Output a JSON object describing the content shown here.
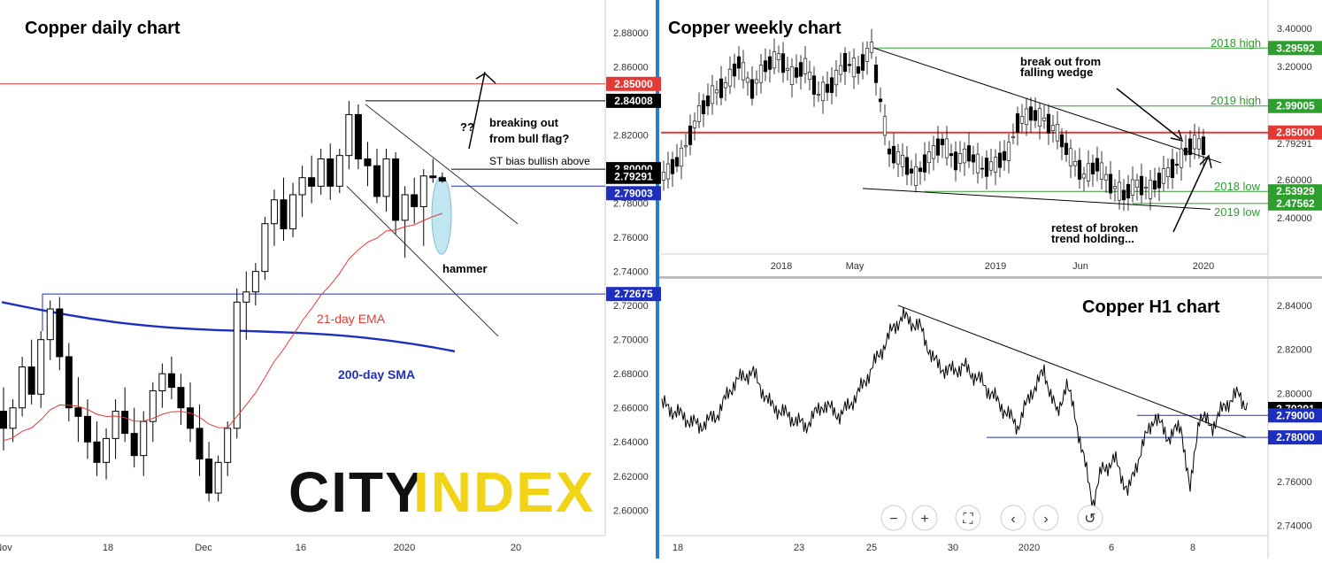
{
  "chart_data": [
    {
      "type": "candlestick",
      "title": "Copper daily chart",
      "y_ticks": [
        "2.88000",
        "2.86000",
        "2.84000",
        "2.82000",
        "2.80000",
        "2.78000",
        "2.76000",
        "2.74000",
        "2.72000",
        "2.70000",
        "2.68000",
        "2.66000",
        "2.64000",
        "2.62000",
        "2.60000"
      ],
      "x_ticks": [
        "Nov",
        "18",
        "Dec",
        "16",
        "2020",
        "20"
      ],
      "price_tags": [
        {
          "label": "2.85000",
          "value": 2.85,
          "color": "#e53935"
        },
        {
          "label": "2.84008",
          "value": 2.84008,
          "color": "#000000"
        },
        {
          "label": "2.80000",
          "value": 2.8,
          "color": "#000000"
        },
        {
          "label": "2.79291",
          "value": 2.79291,
          "color": "#000000"
        },
        {
          "label": "2.79003",
          "value": 2.79003,
          "color": "#1e2fbf"
        },
        {
          "label": "2.72675",
          "value": 2.72675,
          "color": "#1e2fbf"
        }
      ],
      "annotations": {
        "question": "??",
        "bull_flag_1": "breaking out",
        "bull_flag_2": "from bull flag?",
        "st_bias": "ST bias bullish above",
        "hammer": "hammer",
        "ema": "21-day EMA",
        "sma": "200-day SMA"
      },
      "candles": [
        [
          2.658,
          2.672,
          2.635,
          2.648
        ],
        [
          2.648,
          2.665,
          2.64,
          2.66
        ],
        [
          2.66,
          2.69,
          2.655,
          2.684
        ],
        [
          2.684,
          2.7,
          2.662,
          2.668
        ],
        [
          2.668,
          2.705,
          2.66,
          2.7
        ],
        [
          2.7,
          2.723,
          2.688,
          2.718
        ],
        [
          2.718,
          2.725,
          2.682,
          2.69
        ],
        [
          2.69,
          2.698,
          2.652,
          2.66
        ],
        [
          2.66,
          2.678,
          2.64,
          2.655
        ],
        [
          2.655,
          2.665,
          2.63,
          2.64
        ],
        [
          2.64,
          2.652,
          2.62,
          2.628
        ],
        [
          2.628,
          2.648,
          2.618,
          2.642
        ],
        [
          2.642,
          2.665,
          2.63,
          2.658
        ],
        [
          2.658,
          2.672,
          2.64,
          2.645
        ],
        [
          2.645,
          2.66,
          2.625,
          2.632
        ],
        [
          2.632,
          2.658,
          2.62,
          2.652
        ],
        [
          2.652,
          2.675,
          2.64,
          2.67
        ],
        [
          2.67,
          2.686,
          2.66,
          2.68
        ],
        [
          2.68,
          2.69,
          2.665,
          2.672
        ],
        [
          2.672,
          2.68,
          2.65,
          2.66
        ],
        [
          2.66,
          2.675,
          2.64,
          2.648
        ],
        [
          2.648,
          2.662,
          2.62,
          2.63
        ],
        [
          2.63,
          2.64,
          2.605,
          2.61
        ],
        [
          2.61,
          2.632,
          2.605,
          2.628
        ],
        [
          2.628,
          2.652,
          2.62,
          2.648
        ],
        [
          2.648,
          2.73,
          2.642,
          2.722
        ],
        [
          2.722,
          2.74,
          2.7,
          2.728
        ],
        [
          2.728,
          2.745,
          2.72,
          2.74
        ],
        [
          2.74,
          2.772,
          2.735,
          2.768
        ],
        [
          2.768,
          2.788,
          2.755,
          2.782
        ],
        [
          2.782,
          2.795,
          2.758,
          2.765
        ],
        [
          2.765,
          2.792,
          2.76,
          2.785
        ],
        [
          2.785,
          2.802,
          2.772,
          2.795
        ],
        [
          2.795,
          2.808,
          2.78,
          2.79
        ],
        [
          2.79,
          2.812,
          2.785,
          2.806
        ],
        [
          2.806,
          2.815,
          2.782,
          2.79
        ],
        [
          2.79,
          2.812,
          2.786,
          2.808
        ],
        [
          2.808,
          2.84,
          2.8,
          2.832
        ],
        [
          2.832,
          2.838,
          2.8,
          2.806
        ],
        [
          2.806,
          2.816,
          2.79,
          2.802
        ],
        [
          2.802,
          2.812,
          2.78,
          2.784
        ],
        [
          2.784,
          2.812,
          2.775,
          2.806
        ],
        [
          2.806,
          2.81,
          2.762,
          2.77
        ],
        [
          2.77,
          2.79,
          2.748,
          2.785
        ],
        [
          2.785,
          2.795,
          2.768,
          2.778
        ],
        [
          2.778,
          2.8,
          2.755,
          2.796
        ],
        [
          2.796,
          2.806,
          2.792,
          2.795
        ],
        [
          2.795,
          2.798,
          2.792,
          2.793
        ]
      ]
    },
    {
      "type": "candlestick",
      "title": "Copper weekly chart",
      "y_ticks": [
        "3.40000",
        "3.20000",
        "2.79291",
        "2.60000",
        "2.40000"
      ],
      "x_ticks": [
        "2018",
        "May",
        "2019",
        "Jun",
        "2020"
      ],
      "price_tags": [
        {
          "label": "3.29592",
          "value": 3.29592,
          "color": "#2e9e2e"
        },
        {
          "label": "2.99005",
          "value": 2.99005,
          "color": "#2e9e2e"
        },
        {
          "label": "2.85000",
          "value": 2.85,
          "color": "#e53935"
        },
        {
          "label": "2.53929",
          "value": 2.53929,
          "color": "#2e9e2e"
        },
        {
          "label": "2.47562",
          "value": 2.47562,
          "color": "#2e9e2e"
        }
      ],
      "annotations": {
        "high2018": "2018 high",
        "high2019": "2019 high",
        "low2018": "2018 low",
        "low2019": "2019 low",
        "wedge_1": "break out from",
        "wedge_2": "falling wedge",
        "retest_1": "retest of broken",
        "retest_2": "trend holding..."
      }
    },
    {
      "type": "line",
      "title": "Copper H1 chart",
      "y_ticks": [
        "2.84000",
        "2.82000",
        "2.80000",
        "2.76000",
        "2.74000"
      ],
      "x_ticks": [
        "18",
        "23",
        "25",
        "30",
        "2020",
        "6",
        "8"
      ],
      "price_tags": [
        {
          "label": "2.79291",
          "value": 2.79291,
          "color": "#000000"
        },
        {
          "label": "2.79000",
          "value": 2.79,
          "color": "#1e2fbf"
        },
        {
          "label": "2.78000",
          "value": 2.78,
          "color": "#1e2fbf"
        }
      ]
    }
  ],
  "logo": {
    "part1": "CITY",
    "part2": "INDEX"
  },
  "toolbar": {
    "zoom_out": "−",
    "zoom_in": "+",
    "fit": "⛶",
    "back": "‹",
    "forward": "›",
    "reset": "↺"
  }
}
